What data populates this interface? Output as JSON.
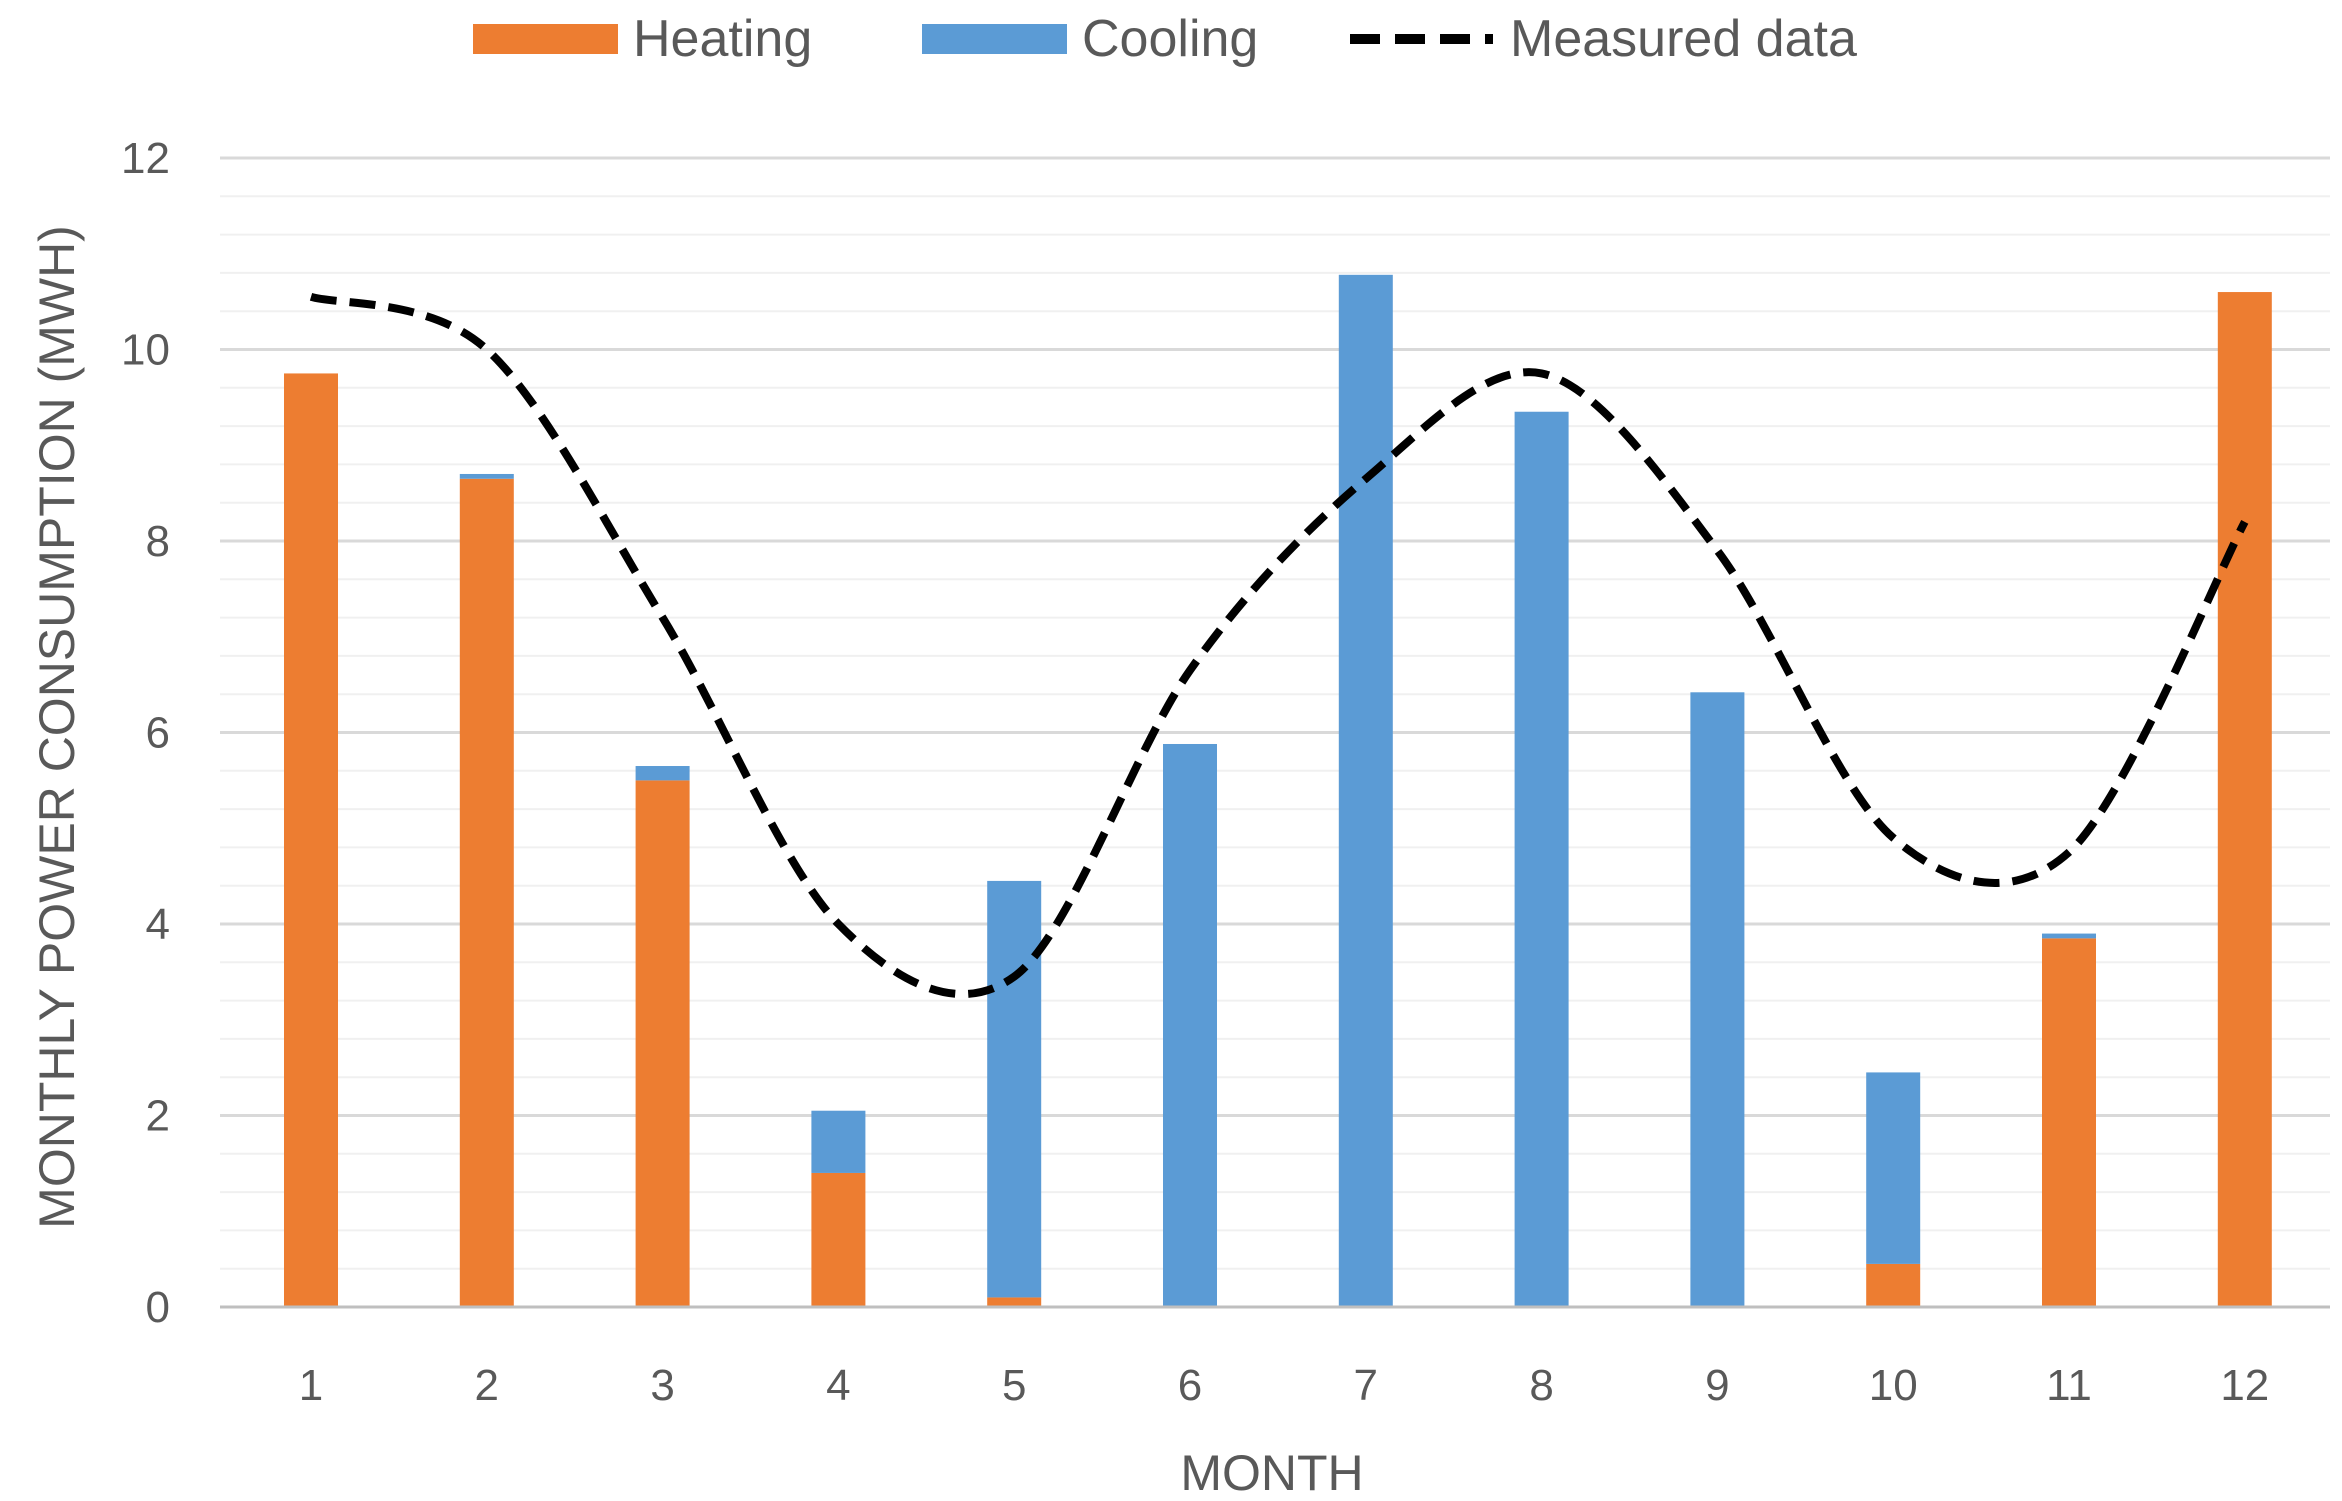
{
  "chart_data": {
    "type": "bar",
    "stacked": true,
    "title": "",
    "xlabel": "MONTH",
    "ylabel": "MONTHLY POWER CONSUMPTION (MWH)",
    "categories": [
      "1",
      "2",
      "3",
      "4",
      "5",
      "6",
      "7",
      "8",
      "9",
      "10",
      "11",
      "12"
    ],
    "ylim": [
      0,
      12
    ],
    "yticks": [
      "0",
      "2",
      "4",
      "6",
      "8",
      "10",
      "12"
    ],
    "ytick_values": [
      0,
      2,
      4,
      6,
      8,
      10,
      12
    ],
    "minor_grid_step": 0.4,
    "legend_position": "top",
    "series": [
      {
        "name": "Heating",
        "kind": "bar",
        "color": "#ED7D31",
        "values": [
          9.75,
          8.65,
          5.5,
          1.4,
          0.1,
          0,
          0,
          0,
          0,
          0.45,
          3.85,
          10.6
        ]
      },
      {
        "name": "Cooling",
        "kind": "bar",
        "color": "#5B9BD5",
        "values": [
          0,
          0.05,
          0.15,
          0.65,
          4.35,
          5.88,
          10.78,
          9.35,
          6.42,
          2.0,
          0.05,
          0
        ]
      },
      {
        "name": "Measured data",
        "kind": "line",
        "style": "dashed",
        "color": "#000000",
        "values": [
          10.55,
          10.0,
          7.2,
          4.0,
          3.45,
          6.65,
          8.65,
          9.75,
          7.9,
          4.9,
          4.75,
          8.2
        ]
      }
    ]
  }
}
